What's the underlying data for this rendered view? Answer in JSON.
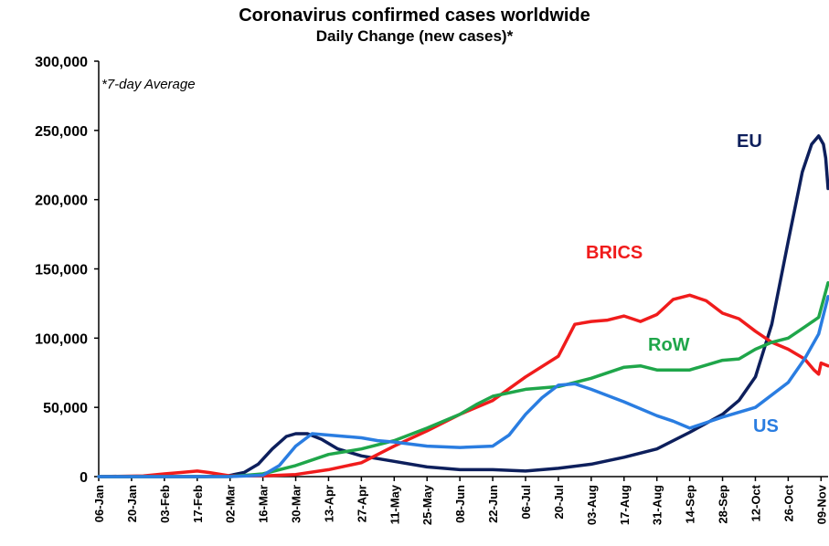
{
  "chart_data": {
    "type": "line",
    "title": "Coronavirus confirmed cases worldwide",
    "subtitle": "Daily Change (new cases)*",
    "note": "*7-day Average",
    "xlabel": "",
    "ylabel": "",
    "ylim": [
      0,
      300000
    ],
    "yticks": [
      0,
      50000,
      100000,
      150000,
      200000,
      250000,
      300000
    ],
    "ytick_labels": [
      "0",
      "50,000",
      "100,000",
      "150,000",
      "200,000",
      "250,000",
      "300,000"
    ],
    "x_start": "2020-01-06",
    "x_end": "2020-11-12",
    "xticks": [
      "2020-01-06",
      "2020-01-20",
      "2020-02-03",
      "2020-02-17",
      "2020-03-02",
      "2020-03-16",
      "2020-03-30",
      "2020-04-13",
      "2020-04-27",
      "2020-05-11",
      "2020-05-25",
      "2020-06-08",
      "2020-06-22",
      "2020-07-06",
      "2020-07-20",
      "2020-08-03",
      "2020-08-17",
      "2020-08-31",
      "2020-09-14",
      "2020-09-28",
      "2020-10-12",
      "2020-10-26",
      "2020-11-09"
    ],
    "xtick_labels": [
      "06-Jan",
      "20-Jan",
      "03-Feb",
      "17-Feb",
      "02-Mar",
      "16-Mar",
      "30-Mar",
      "13-Apr",
      "27-Apr",
      "11-May",
      "25-May",
      "08-Jun",
      "22-Jun",
      "06-Jul",
      "20-Jul",
      "03-Aug",
      "17-Aug",
      "31-Aug",
      "14-Sep",
      "28-Sep",
      "12-Oct",
      "26-Oct",
      "09-Nov"
    ],
    "grid": false,
    "legend": "inline labels",
    "series": [
      {
        "name": "EU",
        "color": "#0d1f5c",
        "points": [
          [
            "2020-01-06",
            0
          ],
          [
            "2020-02-20",
            0
          ],
          [
            "2020-03-01",
            500
          ],
          [
            "2020-03-08",
            3000
          ],
          [
            "2020-03-14",
            9000
          ],
          [
            "2020-03-20",
            20000
          ],
          [
            "2020-03-26",
            29000
          ],
          [
            "2020-03-30",
            31000
          ],
          [
            "2020-04-04",
            31000
          ],
          [
            "2020-04-10",
            27000
          ],
          [
            "2020-04-17",
            20000
          ],
          [
            "2020-04-27",
            15000
          ],
          [
            "2020-05-11",
            11000
          ],
          [
            "2020-05-25",
            7000
          ],
          [
            "2020-06-08",
            5000
          ],
          [
            "2020-06-22",
            5000
          ],
          [
            "2020-07-06",
            4000
          ],
          [
            "2020-07-20",
            6000
          ],
          [
            "2020-08-03",
            9000
          ],
          [
            "2020-08-17",
            14000
          ],
          [
            "2020-08-31",
            20000
          ],
          [
            "2020-09-14",
            32000
          ],
          [
            "2020-09-28",
            45000
          ],
          [
            "2020-10-05",
            55000
          ],
          [
            "2020-10-12",
            72000
          ],
          [
            "2020-10-19",
            110000
          ],
          [
            "2020-10-26",
            170000
          ],
          [
            "2020-11-01",
            220000
          ],
          [
            "2020-11-05",
            240000
          ],
          [
            "2020-11-08",
            246000
          ],
          [
            "2020-11-10",
            240000
          ],
          [
            "2020-11-11",
            230000
          ],
          [
            "2020-11-12",
            208000
          ]
        ]
      },
      {
        "name": "BRICS",
        "color": "#f01c1c",
        "points": [
          [
            "2020-01-06",
            0
          ],
          [
            "2020-01-25",
            500
          ],
          [
            "2020-02-03",
            2000
          ],
          [
            "2020-02-10",
            3000
          ],
          [
            "2020-02-17",
            4000
          ],
          [
            "2020-02-22",
            3000
          ],
          [
            "2020-03-02",
            500
          ],
          [
            "2020-03-16",
            500
          ],
          [
            "2020-03-30",
            1500
          ],
          [
            "2020-04-13",
            5000
          ],
          [
            "2020-04-27",
            10000
          ],
          [
            "2020-05-11",
            22000
          ],
          [
            "2020-05-25",
            33000
          ],
          [
            "2020-06-08",
            45000
          ],
          [
            "2020-06-22",
            55000
          ],
          [
            "2020-07-06",
            72000
          ],
          [
            "2020-07-20",
            87000
          ],
          [
            "2020-07-27",
            110000
          ],
          [
            "2020-08-03",
            112000
          ],
          [
            "2020-08-10",
            113000
          ],
          [
            "2020-08-17",
            116000
          ],
          [
            "2020-08-24",
            112000
          ],
          [
            "2020-08-31",
            117000
          ],
          [
            "2020-09-07",
            128000
          ],
          [
            "2020-09-14",
            131000
          ],
          [
            "2020-09-21",
            127000
          ],
          [
            "2020-09-28",
            118000
          ],
          [
            "2020-10-05",
            114000
          ],
          [
            "2020-10-12",
            105000
          ],
          [
            "2020-10-19",
            97000
          ],
          [
            "2020-10-26",
            92000
          ],
          [
            "2020-11-02",
            85000
          ],
          [
            "2020-11-06",
            77000
          ],
          [
            "2020-11-08",
            74000
          ],
          [
            "2020-11-09",
            82000
          ],
          [
            "2020-11-12",
            80000
          ]
        ]
      },
      {
        "name": "RoW",
        "color": "#1fa64a",
        "points": [
          [
            "2020-01-06",
            0
          ],
          [
            "2020-03-02",
            0
          ],
          [
            "2020-03-16",
            2000
          ],
          [
            "2020-03-30",
            8000
          ],
          [
            "2020-04-13",
            16000
          ],
          [
            "2020-04-27",
            20000
          ],
          [
            "2020-05-11",
            26000
          ],
          [
            "2020-05-25",
            35000
          ],
          [
            "2020-06-08",
            45000
          ],
          [
            "2020-06-15",
            52000
          ],
          [
            "2020-06-22",
            58000
          ],
          [
            "2020-07-06",
            63000
          ],
          [
            "2020-07-20",
            65000
          ],
          [
            "2020-08-03",
            71000
          ],
          [
            "2020-08-17",
            79000
          ],
          [
            "2020-08-24",
            80000
          ],
          [
            "2020-08-31",
            77000
          ],
          [
            "2020-09-14",
            77000
          ],
          [
            "2020-09-28",
            84000
          ],
          [
            "2020-10-05",
            85000
          ],
          [
            "2020-10-12",
            92000
          ],
          [
            "2020-10-19",
            97000
          ],
          [
            "2020-10-26",
            100000
          ],
          [
            "2020-11-02",
            108000
          ],
          [
            "2020-11-08",
            115000
          ],
          [
            "2020-11-12",
            140000
          ]
        ]
      },
      {
        "name": "US",
        "color": "#2a7de1",
        "points": [
          [
            "2020-01-06",
            0
          ],
          [
            "2020-03-02",
            0
          ],
          [
            "2020-03-16",
            1000
          ],
          [
            "2020-03-23",
            8000
          ],
          [
            "2020-03-30",
            22000
          ],
          [
            "2020-04-06",
            31000
          ],
          [
            "2020-04-13",
            30000
          ],
          [
            "2020-04-20",
            29000
          ],
          [
            "2020-04-27",
            28000
          ],
          [
            "2020-05-04",
            26000
          ],
          [
            "2020-05-11",
            25000
          ],
          [
            "2020-05-25",
            22000
          ],
          [
            "2020-06-08",
            21000
          ],
          [
            "2020-06-22",
            22000
          ],
          [
            "2020-06-29",
            30000
          ],
          [
            "2020-07-06",
            45000
          ],
          [
            "2020-07-13",
            57000
          ],
          [
            "2020-07-20",
            66000
          ],
          [
            "2020-07-27",
            67000
          ],
          [
            "2020-08-03",
            63000
          ],
          [
            "2020-08-17",
            54000
          ],
          [
            "2020-08-31",
            44000
          ],
          [
            "2020-09-07",
            40000
          ],
          [
            "2020-09-14",
            35000
          ],
          [
            "2020-09-21",
            39000
          ],
          [
            "2020-09-28",
            43000
          ],
          [
            "2020-10-12",
            50000
          ],
          [
            "2020-10-26",
            68000
          ],
          [
            "2020-11-02",
            85000
          ],
          [
            "2020-11-08",
            103000
          ],
          [
            "2020-11-12",
            130000
          ]
        ]
      }
    ],
    "series_labels": [
      {
        "text": "EU",
        "color": "#0d1f5c"
      },
      {
        "text": "BRICS",
        "color": "#f01c1c"
      },
      {
        "text": "RoW",
        "color": "#1fa64a"
      },
      {
        "text": "US",
        "color": "#2a7de1"
      }
    ]
  }
}
